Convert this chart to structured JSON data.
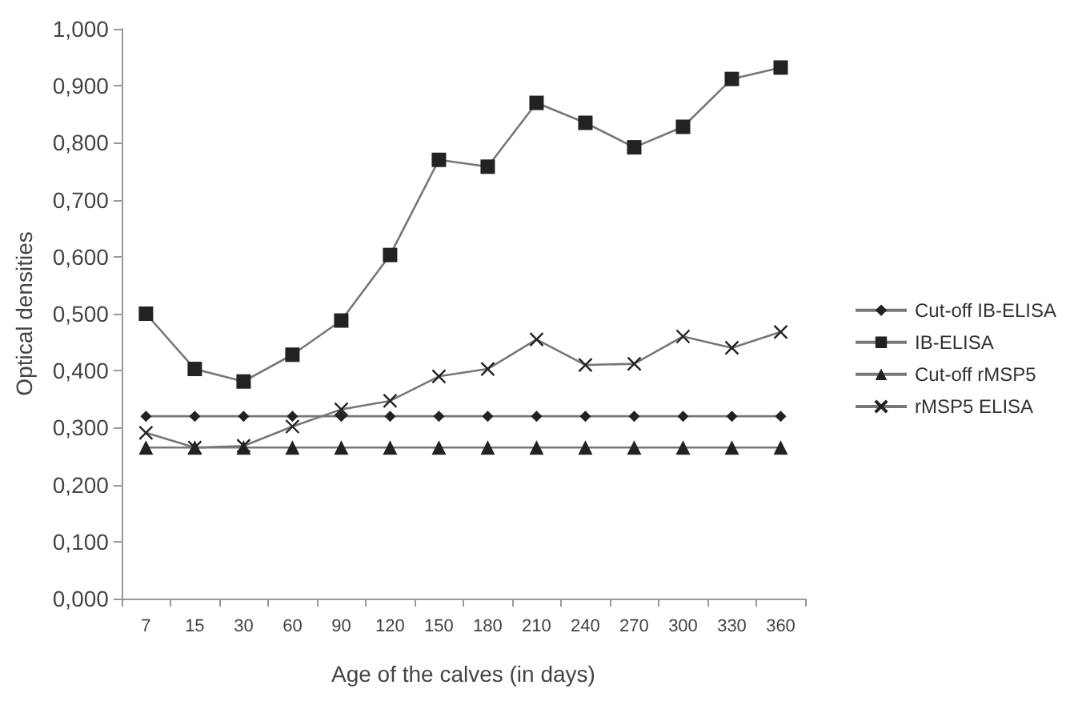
{
  "chart_data": {
    "type": "line",
    "xlabel": "Age of the calves (in days)",
    "ylabel": "Optical densities",
    "categories": [
      "7",
      "15",
      "30",
      "60",
      "90",
      "120",
      "150",
      "180",
      "210",
      "240",
      "270",
      "300",
      "330",
      "360"
    ],
    "series": [
      {
        "name": "Cut-off IB-ELISA",
        "color": "#222222",
        "marker": "diamond",
        "values": [
          0.32,
          0.32,
          0.32,
          0.32,
          0.32,
          0.32,
          0.32,
          0.32,
          0.32,
          0.32,
          0.32,
          0.32,
          0.32,
          0.32
        ]
      },
      {
        "name": "IB-ELISA",
        "color": "#222222",
        "marker": "square",
        "values": [
          0.5,
          0.403,
          0.381,
          0.428,
          0.488,
          0.603,
          0.77,
          0.758,
          0.87,
          0.835,
          0.792,
          0.828,
          0.912,
          0.932
        ]
      },
      {
        "name": "Cut-off rMSP5",
        "color": "#222222",
        "marker": "triangle",
        "values": [
          0.265,
          0.265,
          0.265,
          0.265,
          0.265,
          0.265,
          0.265,
          0.265,
          0.265,
          0.265,
          0.265,
          0.265,
          0.265,
          0.265
        ]
      },
      {
        "name": "rMSP5 ELISA",
        "color": "#222222",
        "marker": "cross",
        "values": [
          0.291,
          0.265,
          0.268,
          0.302,
          0.332,
          0.347,
          0.39,
          0.403,
          0.455,
          0.41,
          0.412,
          0.46,
          0.44,
          0.468
        ]
      }
    ],
    "ylim": [
      0,
      1
    ],
    "yticks": [
      {
        "value": 0,
        "label": "0,000"
      },
      {
        "value": 0.1,
        "label": "0,100"
      },
      {
        "value": 0.2,
        "label": "0,200"
      },
      {
        "value": 0.3,
        "label": "0,300"
      },
      {
        "value": 0.4,
        "label": "0,400"
      },
      {
        "value": 0.5,
        "label": "0,500"
      },
      {
        "value": 0.6,
        "label": "0,600"
      },
      {
        "value": 0.7,
        "label": "0,700"
      },
      {
        "value": 0.8,
        "label": "0,800"
      },
      {
        "value": 0.9,
        "label": "0,900"
      },
      {
        "value": 1,
        "label": "1,000"
      }
    ],
    "grid": false,
    "legend": "right",
    "line_style": "solid"
  }
}
